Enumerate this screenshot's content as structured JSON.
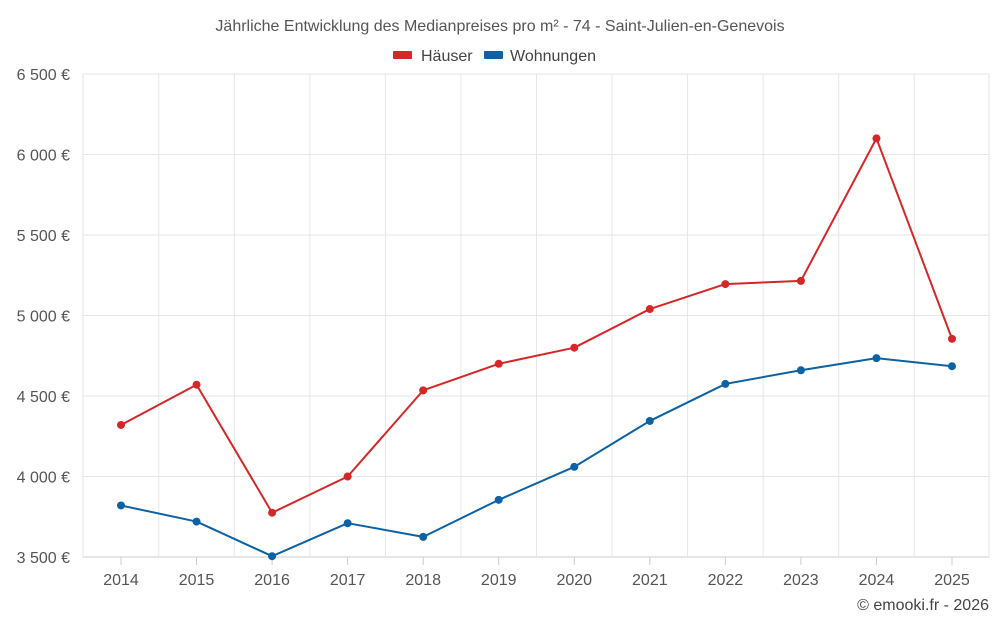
{
  "chart_data": {
    "type": "line",
    "title": "Jährliche Entwicklung des Medianpreises pro m² - 74 - Saint-Julien-en-Genevois",
    "categories": [
      "2014",
      "2015",
      "2016",
      "2017",
      "2018",
      "2019",
      "2020",
      "2021",
      "2022",
      "2023",
      "2024",
      "2025"
    ],
    "series": [
      {
        "name": "Häuser",
        "color": "#d62728",
        "values": [
          4320,
          4570,
          3775,
          4000,
          4535,
          4700,
          4800,
          5040,
          5195,
          5215,
          6100,
          4855
        ]
      },
      {
        "name": "Wohnungen",
        "color": "#0b62a4",
        "values": [
          3820,
          3720,
          3505,
          3710,
          3625,
          3855,
          4060,
          4345,
          4575,
          4660,
          4735,
          4685
        ]
      }
    ],
    "ylim": [
      3500,
      6500
    ],
    "y_ticks": [
      3500,
      4000,
      4500,
      5000,
      5500,
      6000,
      6500
    ],
    "y_tick_labels": [
      "3 500 €",
      "4 000 €",
      "4 500 €",
      "5 000 €",
      "5 500 €",
      "6 000 €",
      "6 500 €"
    ],
    "xlabel": "",
    "ylabel": "",
    "grid": true,
    "legend_position": "top-center"
  },
  "credit": "© emooki.fr - 2026"
}
